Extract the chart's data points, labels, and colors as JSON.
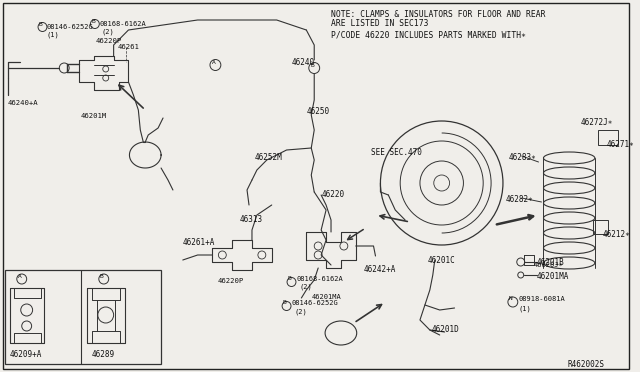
{
  "bg_color": "#f0eeea",
  "border_color": "#222222",
  "line_color": "#333333",
  "text_color": "#111111",
  "fig_width": 6.4,
  "fig_height": 3.72,
  "dpi": 100,
  "note1": "NOTE: CLAMPS & INSULATORS FOR FLOOR AND REAR",
  "note2": "ARE LISTED IN SEC173",
  "note3": "P/CODE 46220 INCLUDES PARTS MARKED WITH∗",
  "ref_code": "R462002S"
}
